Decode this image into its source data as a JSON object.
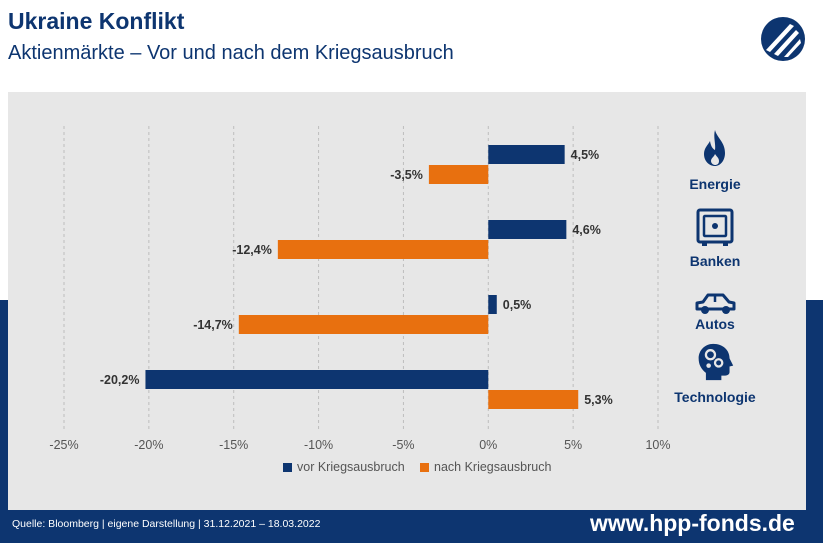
{
  "header": {
    "title": "Ukraine Konflikt",
    "subtitle": "Aktienmärkte – Vor und nach dem Kriegsausbruch"
  },
  "footer": {
    "source": "Quelle: Bloomberg | eigene Darstellung | 31.12.2021 – 18.03.2022",
    "url": "www.hpp-fonds.de"
  },
  "colors": {
    "navy": "#0d3570",
    "orange": "#e8700f",
    "panel": "#e7e7e7"
  },
  "categories": [
    {
      "label": "Energie",
      "icon": "flame-icon"
    },
    {
      "label": "Banken",
      "icon": "safe-icon"
    },
    {
      "label": "Autos",
      "icon": "car-icon"
    },
    {
      "label": "Technologie",
      "icon": "head-gears-icon"
    }
  ],
  "chart_data": {
    "type": "bar",
    "orientation": "horizontal",
    "categories": [
      "Energie",
      "Banken",
      "Autos",
      "Technologie"
    ],
    "series": [
      {
        "name": "vor Kriegsausbruch",
        "values": [
          4.5,
          4.6,
          0.5,
          -20.2
        ],
        "labels": [
          "4,5%",
          "4,6%",
          "0,5%",
          "-20,2%"
        ],
        "color": "#0d3570"
      },
      {
        "name": "nach Kriegsausbruch",
        "values": [
          -3.5,
          -12.4,
          -14.7,
          5.3
        ],
        "labels": [
          "-3,5%",
          "-12,4%",
          "-14,7%",
          "5,3%"
        ],
        "color": "#e8700f"
      }
    ],
    "xlim": [
      -25,
      10
    ],
    "xticks": [
      -25,
      -20,
      -15,
      -10,
      -5,
      0,
      5,
      10
    ],
    "xtick_labels": [
      "-25%",
      "-20%",
      "-15%",
      "-10%",
      "-5%",
      "0%",
      "5%",
      "10%"
    ],
    "grid": "vertical dashed",
    "legend_position": "bottom"
  }
}
